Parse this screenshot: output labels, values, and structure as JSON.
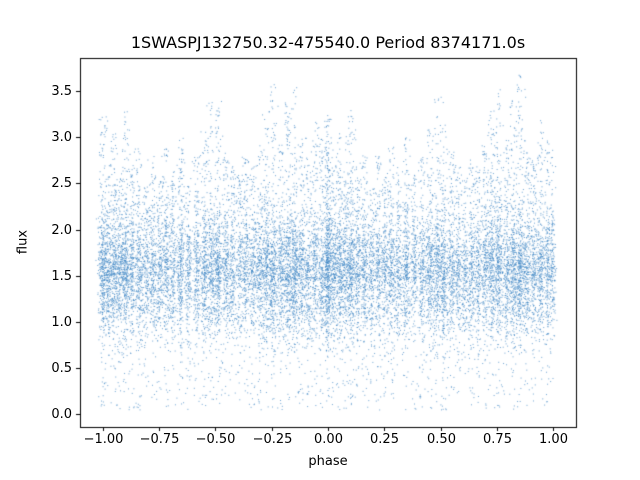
{
  "figure": {
    "background": "#ffffff",
    "spine_color": "#000000"
  },
  "chart_data": {
    "type": "scatter",
    "title": "1SWASPJ132750.32-475540.0 Period 8374171.0s",
    "xlabel": "phase",
    "ylabel": "flux",
    "xlim": [
      -1.1,
      1.1
    ],
    "ylim": [
      -0.14,
      3.86
    ],
    "xticks": [
      -1.0,
      -0.75,
      -0.5,
      -0.25,
      0.0,
      0.25,
      0.5,
      0.75,
      1.0
    ],
    "xtick_labels": [
      "−1.00",
      "−0.75",
      "−0.50",
      "−0.25",
      "0.00",
      "0.25",
      "0.50",
      "0.75",
      "1.00"
    ],
    "yticks": [
      0.0,
      0.5,
      1.0,
      1.5,
      2.0,
      2.5,
      3.0,
      3.5
    ],
    "ytick_labels": [
      "0.0",
      "0.5",
      "1.0",
      "1.5",
      "2.0",
      "2.5",
      "3.0",
      "3.5"
    ],
    "point_color": "#3f87c6",
    "point_alpha": 0.75,
    "marker_px": 1,
    "seed": 42,
    "flux_center": 1.45,
    "flux_sigma": 0.33,
    "phase_duplication_offsets": [
      0,
      -1
    ],
    "bands": [
      {
        "phase": 0.0,
        "width": 0.01,
        "count": 450,
        "flux_max": 3.25
      },
      {
        "phase": 0.025,
        "width": 0.008,
        "count": 260,
        "flux_max": 2.7
      },
      {
        "phase": 0.05,
        "width": 0.009,
        "count": 330,
        "flux_max": 3.05
      },
      {
        "phase": 0.075,
        "width": 0.008,
        "count": 240,
        "flux_max": 2.6
      },
      {
        "phase": 0.1,
        "width": 0.01,
        "count": 420,
        "flux_max": 3.3
      },
      {
        "phase": 0.13,
        "width": 0.008,
        "count": 260,
        "flux_max": 2.7
      },
      {
        "phase": 0.16,
        "width": 0.009,
        "count": 300,
        "flux_max": 2.9
      },
      {
        "phase": 0.19,
        "width": 0.008,
        "count": 220,
        "flux_max": 2.5
      },
      {
        "phase": 0.22,
        "width": 0.009,
        "count": 280,
        "flux_max": 2.8
      },
      {
        "phase": 0.25,
        "width": 0.008,
        "count": 230,
        "flux_max": 2.6
      },
      {
        "phase": 0.28,
        "width": 0.009,
        "count": 300,
        "flux_max": 2.9
      },
      {
        "phase": 0.31,
        "width": 0.008,
        "count": 240,
        "flux_max": 2.65
      },
      {
        "phase": 0.345,
        "width": 0.009,
        "count": 340,
        "flux_max": 3.0
      },
      {
        "phase": 0.38,
        "width": 0.008,
        "count": 230,
        "flux_max": 2.6
      },
      {
        "phase": 0.415,
        "width": 0.009,
        "count": 280,
        "flux_max": 2.8
      },
      {
        "phase": 0.45,
        "width": 0.009,
        "count": 340,
        "flux_max": 3.1
      },
      {
        "phase": 0.48,
        "width": 0.009,
        "count": 300,
        "flux_max": 3.45
      },
      {
        "phase": 0.51,
        "width": 0.01,
        "count": 400,
        "flux_max": 3.4
      },
      {
        "phase": 0.545,
        "width": 0.009,
        "count": 290,
        "flux_max": 2.85
      },
      {
        "phase": 0.575,
        "width": 0.008,
        "count": 240,
        "flux_max": 2.7
      },
      {
        "phase": 0.605,
        "width": 0.008,
        "count": 220,
        "flux_max": 2.6
      },
      {
        "phase": 0.635,
        "width": 0.009,
        "count": 270,
        "flux_max": 2.8
      },
      {
        "phase": 0.665,
        "width": 0.008,
        "count": 240,
        "flux_max": 2.7
      },
      {
        "phase": 0.695,
        "width": 0.009,
        "count": 300,
        "flux_max": 2.95
      },
      {
        "phase": 0.725,
        "width": 0.009,
        "count": 340,
        "flux_max": 3.3
      },
      {
        "phase": 0.755,
        "width": 0.01,
        "count": 420,
        "flux_max": 3.6
      },
      {
        "phase": 0.79,
        "width": 0.009,
        "count": 300,
        "flux_max": 3.0
      },
      {
        "phase": 0.82,
        "width": 0.009,
        "count": 360,
        "flux_max": 3.4
      },
      {
        "phase": 0.85,
        "width": 0.01,
        "count": 430,
        "flux_max": 3.7
      },
      {
        "phase": 0.88,
        "width": 0.009,
        "count": 300,
        "flux_max": 3.0
      },
      {
        "phase": 0.91,
        "width": 0.008,
        "count": 250,
        "flux_max": 2.8
      },
      {
        "phase": 0.94,
        "width": 0.009,
        "count": 300,
        "flux_max": 3.2
      },
      {
        "phase": 0.97,
        "width": 0.008,
        "count": 250,
        "flux_max": 3.0
      },
      {
        "phase": 0.995,
        "width": 0.007,
        "count": 200,
        "flux_max": 2.9
      }
    ]
  }
}
